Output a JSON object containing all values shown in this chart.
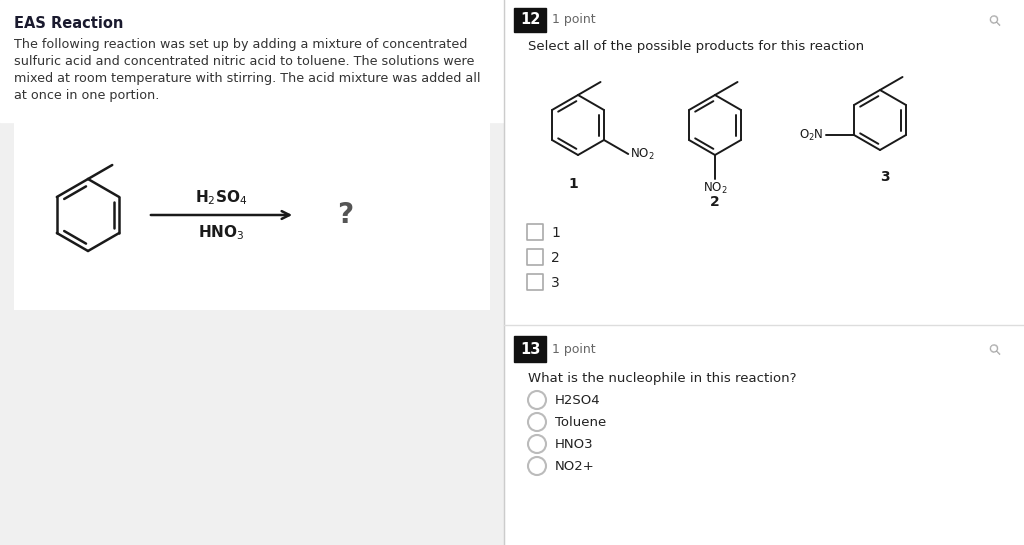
{
  "bg_color": "#ffffff",
  "left_bg": "#f0f0f0",
  "left_title": "EAS Reaction",
  "left_title_color": "#1a1a2e",
  "left_body_lines": [
    "The following reaction was set up by adding a mixture of concentrated",
    "sulfuric acid and concentrated nitric acid to toluene. The solutions were",
    "mixed at room temperature with stirring. The acid mixture was added all",
    "at once in one portion."
  ],
  "rxn_box_bg": "#f8f8f8",
  "q12_label": "12",
  "q12_points": "1 point",
  "q12_question": "Select all of the possible products for this reaction",
  "q13_label": "13",
  "q13_points": "1 point",
  "q13_question": "What is the nucleophile in this reaction?",
  "q13_options": [
    "H2SO4",
    "Toluene",
    "HNO3",
    "NO2+"
  ],
  "checkbox_options": [
    "1",
    "2",
    "3"
  ],
  "label_bg": "#111111",
  "label_fg": "#ffffff",
  "mol_labels": [
    "1",
    "2",
    "3"
  ]
}
